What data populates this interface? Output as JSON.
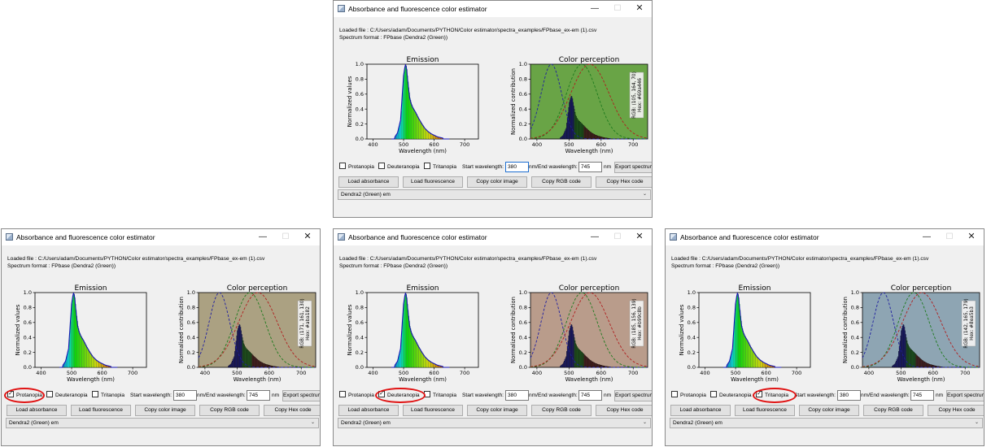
{
  "windows": [
    {
      "id": "top",
      "simulation": "none",
      "bg": "#69a446",
      "rgb_text": "RGB: (105, 164, 70)",
      "hex_text": "Hex: #69a446",
      "checked": [],
      "highlight": null,
      "focus_start": true
    },
    {
      "id": "bottom-left",
      "simulation": "protanopia",
      "bg": "#aba182",
      "rgb_text": "RGB: (171, 161, 130)",
      "hex_text": "Hex: #aba182",
      "checked": [
        "protanopia"
      ],
      "highlight": "protanopia",
      "focus_start": false
    },
    {
      "id": "bottom-middle",
      "simulation": "deuteranopia",
      "bg": "#b99c8b",
      "rgb_text": "RGB: (185, 156, 139)",
      "hex_text": "Hex: #b99c8b",
      "checked": [
        "deuteranopia"
      ],
      "highlight": "deuteranopia",
      "focus_start": false
    },
    {
      "id": "bottom-right",
      "simulation": "tritanopia",
      "bg": "#8ea5b3",
      "rgb_text": "RGB: (142, 165, 179)",
      "hex_text": "Hex: #8ea5b3",
      "checked": [
        "tritanopia"
      ],
      "highlight": "tritanopia",
      "focus_start": false
    }
  ],
  "common": {
    "window_title": "Absorbance and fluorescence color estimator",
    "loaded_file": "Loaded file : C:/Users/adam/Documents/PYTHON/Color estimator/spectra_examples/FPbase_ex-em (1).csv",
    "spectrum_format": "Spectrum format : FPbase (Dendra2 (Green))",
    "emission_title": "Emission",
    "color_title": "Color perception",
    "emission_ylabel": "Normalized values",
    "color_ylabel": "Normalized contribution",
    "xlabel": "Wavelength (nm)",
    "checkbox_protanopia": "Protanopia",
    "checkbox_deuteranopia": "Deuteranopia",
    "checkbox_tritanopia": "Tritanopia",
    "start_label": "Start wavelength:",
    "start_value": "380",
    "end_label": "nm/End wavelength:",
    "end_value": "745",
    "nm_label": "nm",
    "export_label": "Export spectrum",
    "load_absorbance": "Load absorbance",
    "load_fluorescence": "Load fluorescence",
    "copy_color_image": "Copy color image",
    "copy_rgb": "Copy RGB code",
    "copy_hex": "Copy Hex code",
    "dropdown_value": "Dendra2 (Green) em",
    "minimize_glyph": "—",
    "maximize_glyph": "☐",
    "close_glyph": "✕",
    "dropdown_arrow": "⌄",
    "icons": [
      "app-icon",
      "minimize-icon",
      "maximize-icon",
      "close-icon",
      "chevron-down-icon"
    ]
  },
  "chart_data": [
    {
      "type": "bar",
      "title": "Emission",
      "xlabel": "Wavelength (nm)",
      "ylabel": "Normalized values",
      "xlim": [
        380,
        745
      ],
      "ylim": [
        0,
        1.0
      ],
      "xticks": [
        "400",
        "500",
        "600",
        "700"
      ],
      "yticks": [
        "0.0",
        "0.2",
        "0.4",
        "0.6",
        "0.8",
        "1.0"
      ],
      "series": [
        {
          "name": "",
          "x": [
            470,
            480,
            490,
            495,
            500,
            505,
            507,
            510,
            515,
            520,
            525,
            530,
            540,
            550,
            560,
            570,
            580,
            590,
            600,
            610,
            620,
            630
          ],
          "values": [
            0.02,
            0.08,
            0.25,
            0.55,
            0.85,
            0.98,
            1.0,
            0.93,
            0.72,
            0.55,
            0.47,
            0.42,
            0.35,
            0.27,
            0.2,
            0.14,
            0.1,
            0.07,
            0.05,
            0.03,
            0.02,
            0.01
          ]
        }
      ]
    },
    {
      "type": "line",
      "title": "Color perception",
      "xlabel": "Wavelength (nm)",
      "ylabel": "Normalized contribution",
      "xlim": [
        380,
        745
      ],
      "ylim": [
        0,
        1.0
      ],
      "xticks": [
        "400",
        "500",
        "600",
        "700"
      ],
      "yticks": [
        "0.0",
        "0.2",
        "0.4",
        "0.6",
        "0.8",
        "1.0"
      ],
      "series": [
        {
          "name": "",
          "color": "#1f1fa0",
          "peak": 445,
          "width": 32
        },
        {
          "name": "",
          "color": "#1d7a1d",
          "peak": 540,
          "width": 48
        },
        {
          "name": "",
          "color": "#b01e1e",
          "peak": 565,
          "width": 60
        }
      ]
    }
  ]
}
